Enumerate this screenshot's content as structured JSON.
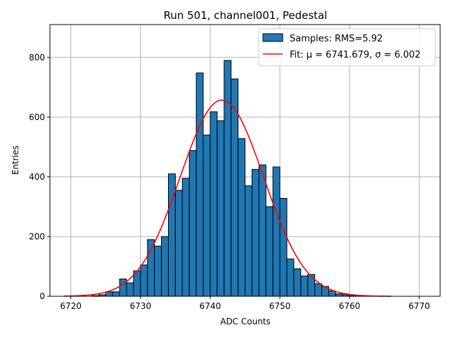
{
  "chart_data": {
    "type": "bar",
    "title": "Run 501, channel001, Pedestal",
    "xlabel": "ADC Counts",
    "ylabel": "Entries",
    "xlim": [
      6717,
      6773
    ],
    "ylim": [
      0,
      910
    ],
    "xticks": [
      6720,
      6730,
      6740,
      6750,
      6760,
      6770
    ],
    "yticks": [
      0,
      200,
      400,
      600,
      800
    ],
    "grid": true,
    "legend_position": "top-right",
    "bar_color": "#1f77b4",
    "fit_color": "#ff0000",
    "histogram": {
      "name": "Samples: RMS=5.92",
      "bin_width": 1,
      "bin_starts": [
        6720,
        6721,
        6722,
        6723,
        6724,
        6725,
        6726,
        6727,
        6728,
        6729,
        6730,
        6731,
        6732,
        6733,
        6734,
        6735,
        6736,
        6737,
        6738,
        6739,
        6740,
        6741,
        6742,
        6743,
        6744,
        6745,
        6746,
        6747,
        6748,
        6749,
        6750,
        6751,
        6752,
        6753,
        6754,
        6755,
        6756,
        6757,
        6758,
        6759,
        6760,
        6761,
        6762,
        6763,
        6764,
        6765
      ],
      "counts": [
        0,
        0,
        0,
        2,
        5,
        15,
        15,
        58,
        45,
        85,
        105,
        190,
        168,
        200,
        410,
        355,
        395,
        488,
        748,
        540,
        618,
        588,
        790,
        728,
        528,
        370,
        425,
        440,
        300,
        433,
        328,
        125,
        92,
        68,
        73,
        42,
        33,
        18,
        8,
        5,
        2,
        1,
        1,
        0,
        0,
        0
      ]
    },
    "fit": {
      "name": "Fit: μ = 6741.679, σ = 6.002",
      "mu": 6741.679,
      "sigma": 6.002,
      "amplitude": 657,
      "x_range": [
        6719,
        6766
      ]
    }
  }
}
